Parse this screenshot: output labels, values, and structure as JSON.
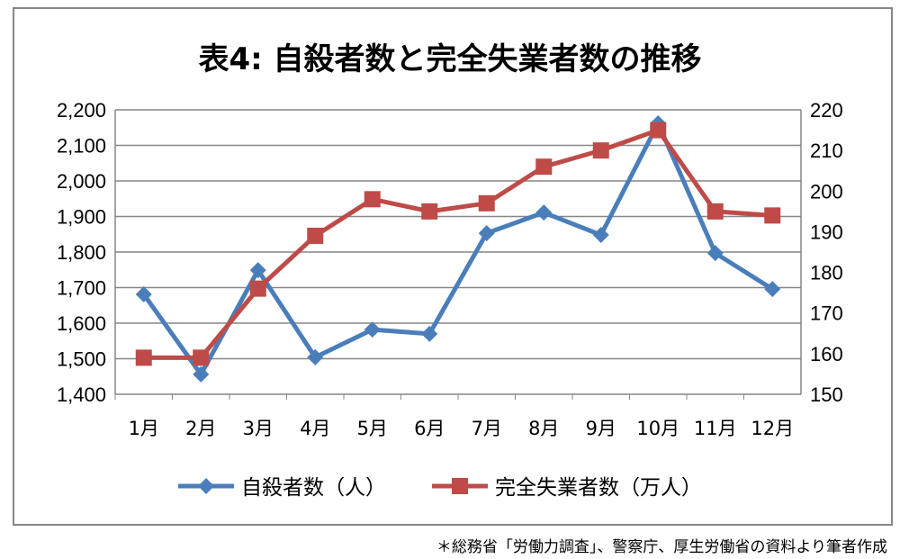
{
  "chart_data": {
    "type": "line",
    "title": "表4: 自殺者数と完全失業者数の推移",
    "categories": [
      "1月",
      "2月",
      "3月",
      "4月",
      "5月",
      "6月",
      "7月",
      "8月",
      "9月",
      "10月",
      "11月",
      "12月"
    ],
    "y_left": {
      "range": [
        1400,
        2200
      ],
      "ticks": [
        "1,400",
        "1,500",
        "1,600",
        "1,700",
        "1,800",
        "1,900",
        "2,000",
        "2,100",
        "2,200"
      ]
    },
    "y_right": {
      "range": [
        150,
        220
      ],
      "ticks": [
        "150",
        "160",
        "170",
        "180",
        "190",
        "200",
        "210",
        "220"
      ]
    },
    "grid": true,
    "legend": "bottom",
    "series": [
      {
        "name": "自殺者数（人）",
        "axis": "left",
        "color": "#4a7ebb",
        "marker": "diamond",
        "values": [
          1681,
          1456,
          1749,
          1504,
          1582,
          1570,
          1853,
          1911,
          1848,
          2162,
          1797,
          1696
        ]
      },
      {
        "name": "完全失業者数（万人）",
        "axis": "right",
        "color": "#be4b48",
        "marker": "square",
        "values": [
          159,
          159,
          176,
          189,
          198,
          195,
          197,
          206,
          210,
          215,
          195,
          194
        ]
      }
    ]
  },
  "footnote": "＊総務省「労働力調査」、警察庁、厚生労働省の資料より筆者作成"
}
